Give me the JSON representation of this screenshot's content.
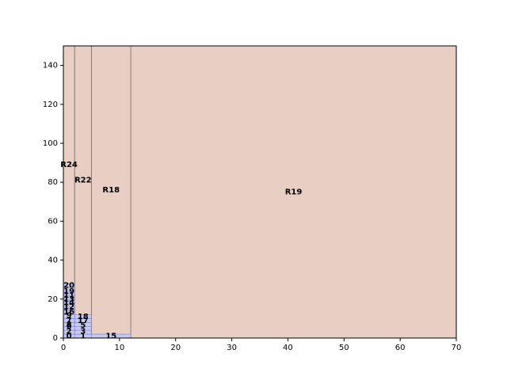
{
  "chart_data": {
    "type": "other",
    "title": "",
    "xlabel": "",
    "ylabel": "",
    "xlim": [
      0,
      70
    ],
    "ylim": [
      0,
      150
    ],
    "xticks": [
      0,
      10,
      20,
      30,
      40,
      50,
      60,
      70
    ],
    "yticks": [
      0,
      20,
      40,
      60,
      80,
      100,
      120,
      140
    ],
    "grid": false,
    "colors": {
      "region_fill": "#e9cfc3",
      "region_stroke": "#8a7f7a",
      "cell_fill": "#c8c9ef",
      "cell_stroke": "#7b7fd6"
    },
    "regions": [
      {
        "name": "R19",
        "x": [
          12,
          70
        ],
        "y": [
          0,
          150
        ]
      },
      {
        "name": "R18",
        "x": [
          5,
          12
        ],
        "y": [
          0,
          150
        ]
      },
      {
        "name": "R22",
        "x": [
          2,
          5
        ],
        "y": [
          0,
          150
        ]
      },
      {
        "name": "R24",
        "x": [
          0,
          2
        ],
        "y": [
          0,
          150
        ]
      }
    ],
    "region_labels": [
      {
        "text": "R19",
        "x": 41,
        "y": 75
      },
      {
        "text": "R18",
        "x": 8.5,
        "y": 76
      },
      {
        "text": "R22",
        "x": 3.5,
        "y": 81
      },
      {
        "text": "R24",
        "x": 1,
        "y": 89
      }
    ],
    "cells": [
      {
        "x": [
          0,
          2
        ],
        "y": [
          0,
          2
        ]
      },
      {
        "x": [
          0,
          2
        ],
        "y": [
          2,
          4
        ]
      },
      {
        "x": [
          0,
          2
        ],
        "y": [
          4,
          6
        ]
      },
      {
        "x": [
          0,
          2
        ],
        "y": [
          6,
          8
        ]
      },
      {
        "x": [
          0,
          2
        ],
        "y": [
          8,
          10
        ]
      },
      {
        "x": [
          0,
          2
        ],
        "y": [
          10,
          12
        ]
      },
      {
        "x": [
          0,
          2
        ],
        "y": [
          12,
          14
        ]
      },
      {
        "x": [
          0,
          2
        ],
        "y": [
          14,
          16
        ]
      },
      {
        "x": [
          0,
          2
        ],
        "y": [
          16,
          18
        ]
      },
      {
        "x": [
          0,
          2
        ],
        "y": [
          18,
          20
        ]
      },
      {
        "x": [
          0,
          2
        ],
        "y": [
          20,
          22
        ]
      },
      {
        "x": [
          0,
          2
        ],
        "y": [
          22,
          24
        ]
      },
      {
        "x": [
          0,
          2
        ],
        "y": [
          24,
          26
        ]
      },
      {
        "x": [
          0,
          2
        ],
        "y": [
          26,
          28
        ]
      },
      {
        "x": [
          2,
          5
        ],
        "y": [
          0,
          2
        ]
      },
      {
        "x": [
          2,
          5
        ],
        "y": [
          2,
          4
        ]
      },
      {
        "x": [
          2,
          5
        ],
        "y": [
          4,
          6
        ]
      },
      {
        "x": [
          2,
          5
        ],
        "y": [
          6,
          8
        ]
      },
      {
        "x": [
          2,
          5
        ],
        "y": [
          8,
          10
        ]
      },
      {
        "x": [
          2,
          5
        ],
        "y": [
          10,
          12
        ]
      },
      {
        "x": [
          5,
          12
        ],
        "y": [
          0,
          2
        ]
      }
    ],
    "cell_labels": [
      {
        "text": "0",
        "x": 1,
        "y": 1
      },
      {
        "text": "2",
        "x": 1,
        "y": 3.5
      },
      {
        "text": "6",
        "x": 1,
        "y": 6
      },
      {
        "text": "8",
        "x": 1,
        "y": 7
      },
      {
        "text": "7",
        "x": 1,
        "y": 9
      },
      {
        "text": "9",
        "x": 1,
        "y": 11.5
      },
      {
        "text": "16",
        "x": 1,
        "y": 13.5
      },
      {
        "text": "12",
        "x": 1,
        "y": 16
      },
      {
        "text": "14",
        "x": 1,
        "y": 18
      },
      {
        "text": "13",
        "x": 1,
        "y": 20
      },
      {
        "text": "11",
        "x": 1,
        "y": 22
      },
      {
        "text": "19",
        "x": 1,
        "y": 24
      },
      {
        "text": "20",
        "x": 1,
        "y": 27
      },
      {
        "text": "1",
        "x": 3.5,
        "y": 1
      },
      {
        "text": "3",
        "x": 3.5,
        "y": 3.5
      },
      {
        "text": "5",
        "x": 3.5,
        "y": 6.5
      },
      {
        "text": "17",
        "x": 3.5,
        "y": 9
      },
      {
        "text": "18",
        "x": 3.5,
        "y": 11
      },
      {
        "text": "15",
        "x": 8.5,
        "y": 1
      }
    ]
  }
}
